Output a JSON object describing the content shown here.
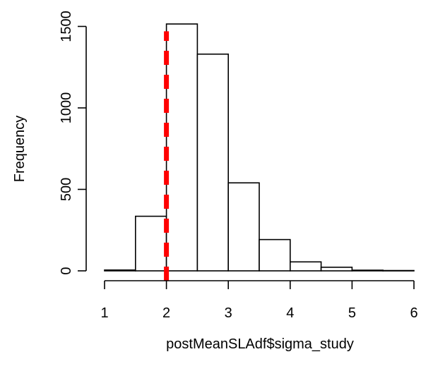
{
  "chart_data": {
    "type": "bar",
    "subtype": "histogram",
    "title": "",
    "xlabel": "postMeanSLAdf$sigma_study",
    "ylabel": "Frequency",
    "bins": [
      {
        "start": 1.0,
        "end": 1.5,
        "count": 5
      },
      {
        "start": 1.5,
        "end": 2.0,
        "count": 335
      },
      {
        "start": 2.0,
        "end": 2.5,
        "count": 1515
      },
      {
        "start": 2.5,
        "end": 3.0,
        "count": 1330
      },
      {
        "start": 3.0,
        "end": 3.5,
        "count": 540
      },
      {
        "start": 3.5,
        "end": 4.0,
        "count": 192
      },
      {
        "start": 4.0,
        "end": 4.5,
        "count": 55
      },
      {
        "start": 4.5,
        "end": 5.0,
        "count": 22
      },
      {
        "start": 5.0,
        "end": 5.5,
        "count": 4
      },
      {
        "start": 5.5,
        "end": 6.0,
        "count": 2
      }
    ],
    "x_ticks": [
      "1",
      "2",
      "3",
      "4",
      "5",
      "6"
    ],
    "y_ticks": [
      "0",
      "500",
      "1000",
      "1500"
    ],
    "xlim": [
      1,
      6
    ],
    "ylim": [
      0,
      1515
    ],
    "grid": false,
    "legend": "none",
    "reference_line": {
      "x": 2,
      "y_max": 1470,
      "color": "#ff0000",
      "style": "dashed"
    },
    "colors": {
      "bar_fill": "#ffffff",
      "bar_stroke": "#000000",
      "reference_line": "#ff0000"
    }
  }
}
